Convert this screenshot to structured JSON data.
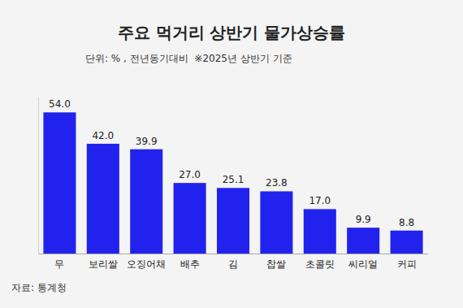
{
  "chart_data": {
    "type": "bar",
    "title": "주요 먹거리 상반기 물가상승률",
    "subtitle": "단위: % , 전년동기대비  ※2025년 상반기 기준",
    "source": "자료: 통계청",
    "categories": [
      "무",
      "보리쌀",
      "오징어채",
      "배추",
      "김",
      "찹쌀",
      "초콜릿",
      "씨리얼",
      "커피"
    ],
    "values": [
      54.0,
      42.0,
      39.9,
      27.0,
      25.1,
      23.8,
      17.0,
      9.9,
      8.8
    ],
    "value_labels": [
      "54.0",
      "42.0",
      "39.9",
      "27.0",
      "25.1",
      "23.8",
      "17.0",
      "9.9",
      "8.8"
    ],
    "color": "#2222ee",
    "ylim": [
      0,
      60
    ],
    "yticks": [],
    "grid": false,
    "data_labels": true,
    "tick_labels": "x"
  }
}
